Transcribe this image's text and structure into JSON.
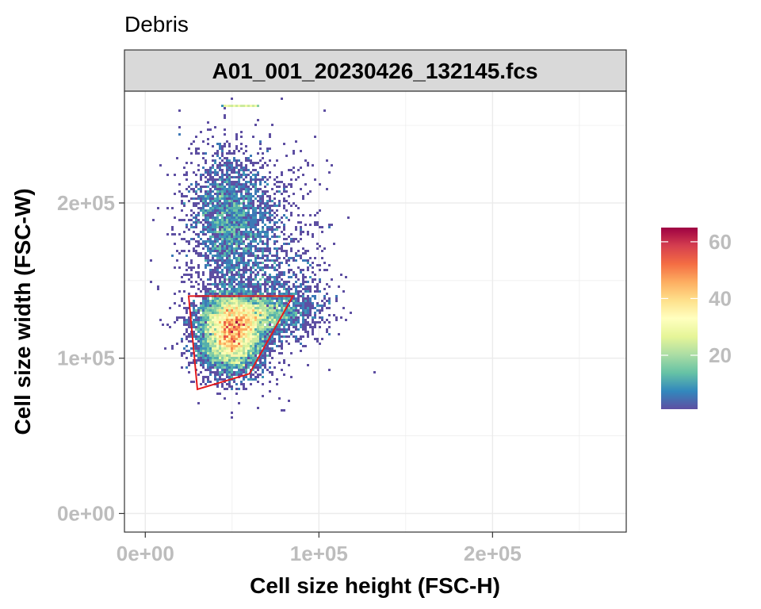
{
  "chart_data": {
    "type": "heatmap",
    "title": "Debris",
    "facet_label": "A01_001_20230426_132145.fcs",
    "xlabel": "Cell size height (FSC-H)",
    "ylabel": "Cell size width (FSC-W)",
    "xlim": [
      -12000,
      277000
    ],
    "ylim": [
      -12000,
      272000
    ],
    "x_ticks": [
      0,
      100000,
      200000
    ],
    "x_tick_labels": [
      "0e+00",
      "1e+05",
      "2e+05"
    ],
    "y_ticks": [
      0,
      100000,
      200000
    ],
    "y_tick_labels": [
      "0e+00",
      "1e+05",
      "2e+05"
    ],
    "grid": true,
    "legend": {
      "placement": "right",
      "scale": "count",
      "min": 1,
      "max": 65,
      "ticks": [
        20,
        40,
        60
      ],
      "tick_labels": [
        "20",
        "40",
        "60"
      ],
      "palette": "Spectral (reversed)"
    },
    "colors": {
      "gate": "#e41a1c",
      "grid": "#ebebeb",
      "strip_bg": "#d9d9d9",
      "palette_stops": [
        "#5e4fa2",
        "#3288bd",
        "#66c2a5",
        "#abdda4",
        "#e6f598",
        "#ffffbf",
        "#fee08b",
        "#fdae61",
        "#f46d43",
        "#d53e4f",
        "#9e0142"
      ]
    },
    "density_clusters": [
      {
        "cx": 50000,
        "cy": 115000,
        "sx": 9000,
        "sy": 12000,
        "n": 6500
      },
      {
        "cx": 58000,
        "cy": 128000,
        "sx": 14000,
        "sy": 7000,
        "n": 2600
      },
      {
        "cx": 48000,
        "cy": 190000,
        "sx": 11000,
        "sy": 22000,
        "n": 2000
      },
      {
        "cx": 62000,
        "cy": 165000,
        "sx": 20000,
        "sy": 35000,
        "n": 1600
      },
      {
        "cx": 82000,
        "cy": 135000,
        "sx": 12000,
        "sy": 10000,
        "n": 500
      }
    ],
    "saturation_row": {
      "y": 262000,
      "x_from": 45000,
      "x_to": 65000
    },
    "gate_polygon": [
      [
        25000,
        140000
      ],
      [
        85000,
        140000
      ],
      [
        60000,
        90000
      ],
      [
        30000,
        80000
      ]
    ]
  }
}
